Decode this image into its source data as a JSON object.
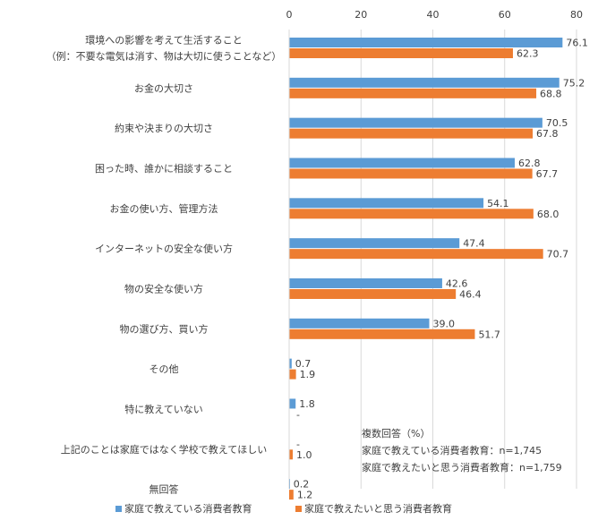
{
  "chart_data": {
    "type": "bar",
    "orientation": "horizontal",
    "xlim": [
      0,
      80
    ],
    "xticks": [
      0,
      20,
      40,
      60,
      80
    ],
    "categories": [
      [
        "環境への影響を考えて生活すること",
        "（例：不要な電気は消す、物は大切に使うことなど）"
      ],
      [
        "お金の大切さ"
      ],
      [
        "約束や決まりの大切さ"
      ],
      [
        "困った時、誰かに相談すること"
      ],
      [
        "お金の使い方、管理方法"
      ],
      [
        "インターネットの安全な使い方"
      ],
      [
        "物の安全な使い方"
      ],
      [
        "物の選び方、買い方"
      ],
      [
        "その他"
      ],
      [
        "特に教えていない"
      ],
      [
        "上記のことは家庭ではなく学校で教えてほしい"
      ],
      [
        "無回答"
      ]
    ],
    "series": [
      {
        "name": "家庭で教えている消費者教育",
        "color": "#5b9bd5",
        "values": [
          76.1,
          75.2,
          70.5,
          62.8,
          54.1,
          47.4,
          42.6,
          39.0,
          0.7,
          1.8,
          null,
          0.2
        ],
        "labels": [
          "76.1",
          "75.2",
          "70.5",
          "62.8",
          "54.1",
          "47.4",
          "42.6",
          "39.0",
          "0.7",
          "1.8",
          "-",
          "0.2"
        ]
      },
      {
        "name": "家庭で教えたいと思う消費者教育",
        "color": "#ed7d31",
        "values": [
          62.3,
          68.8,
          67.8,
          67.7,
          68.0,
          70.7,
          46.4,
          51.7,
          1.9,
          null,
          1.0,
          1.2
        ],
        "labels": [
          "62.3",
          "68.8",
          "67.8",
          "67.7",
          "68.0",
          "70.7",
          "46.4",
          "51.7",
          "1.9",
          "-",
          "1.0",
          "1.2"
        ]
      }
    ],
    "annotations": [
      "複数回答（%）",
      "家庭で教えている消費者教育：n=1,745",
      "家庭で教えたいと思う消費者教育：n=1,759"
    ],
    "legend_position": "bottom"
  }
}
